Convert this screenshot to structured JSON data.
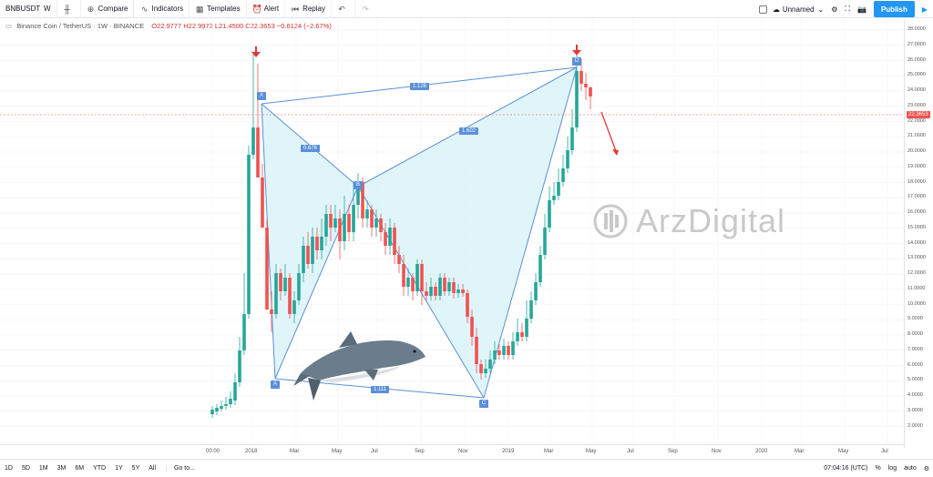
{
  "toolbar": {
    "symbol": "BNBUSDT",
    "interval": "W",
    "compare_label": "Compare",
    "indicators_label": "Indicators",
    "templates_label": "Templates",
    "alert_label": "Alert",
    "replay_label": "Replay",
    "layout_name": "Unnamed",
    "publish_label": "Publish"
  },
  "legend": {
    "title": "Binance Coin / TetherUS · 1W · BINANCE",
    "ohlc": "O22.9777  H22.9973  L21.4500  C22.3653  −0.6124 (−2.67%)"
  },
  "price_axis": {
    "ticks": [
      "28.0000",
      "27.0000",
      "26.0000",
      "25.0000",
      "24.0000",
      "23.0000",
      "22.0000",
      "21.0000",
      "20.0000",
      "19.0000",
      "18.0000",
      "17.0000",
      "16.0000",
      "15.0000",
      "14.0000",
      "13.0000",
      "12.0000",
      "11.0000",
      "10.0000",
      "9.0000",
      "8.0000",
      "7.0000",
      "6.0000",
      "5.0000",
      "4.0000",
      "3.0000",
      "2.0000"
    ],
    "current_price": "22.3653"
  },
  "time_axis": {
    "ticks": [
      "00:00",
      "2018",
      "Mar",
      "May",
      "Jul",
      "Sep",
      "Nov",
      "2019",
      "Mar",
      "May",
      "Jul",
      "Sep",
      "Nov",
      "2020",
      "Mar",
      "May",
      "Jul"
    ]
  },
  "pattern": {
    "points": [
      "X",
      "A",
      "B",
      "C",
      "D"
    ],
    "ratios": [
      "1.126",
      "0.676",
      "1.602",
      "1.111"
    ]
  },
  "watermark": {
    "text": "ArzDigital"
  },
  "bottombar": {
    "ranges": [
      "1D",
      "5D",
      "1M",
      "3M",
      "6M",
      "YTD",
      "1Y",
      "5Y",
      "All"
    ],
    "goto_label": "Go to...",
    "clock": "07:04:16 (UTC)",
    "percent_label": "%",
    "log_label": "log",
    "auto_label": "auto"
  },
  "colors": {
    "up": "#26a69a",
    "down": "#ef5350",
    "pattern_fill": "#d8f3f7",
    "pattern_line": "#5b8fd9",
    "accent": "#2196f3"
  }
}
